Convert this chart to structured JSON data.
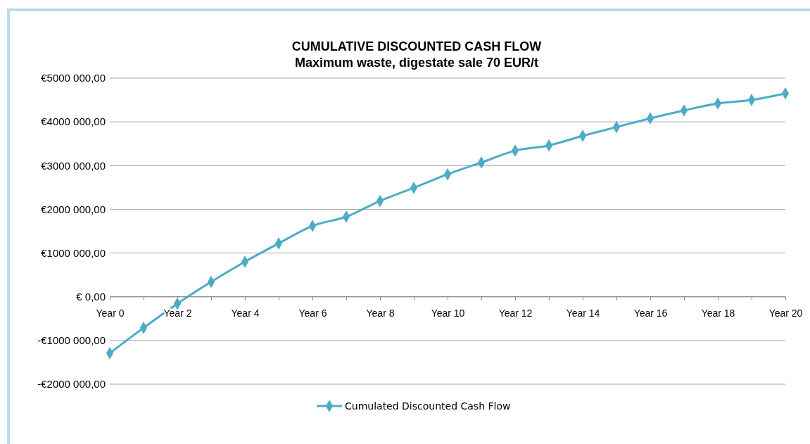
{
  "chart_data": {
    "type": "line",
    "title": "CUMULATIVE DISCOUNTED CASH FLOW",
    "subtitle": "Maximum waste, digestate sale 70 EUR/t",
    "categories": [
      "Year 0",
      null,
      "Year 2",
      null,
      "Year 4",
      null,
      "Year 6",
      null,
      "Year 8",
      null,
      "Year 10",
      null,
      "Year 12",
      null,
      "Year 14",
      null,
      "Year 16",
      null,
      "Year 18",
      null,
      "Year 20"
    ],
    "series": [
      {
        "name": "Cumulated Discounted Cash Flow",
        "color": "#4bacc6",
        "values": [
          -1290000,
          -710000,
          -160000,
          340000,
          800000,
          1220000,
          1620000,
          1830000,
          2190000,
          2490000,
          2800000,
          3070000,
          3340000,
          3460000,
          3680000,
          3880000,
          4080000,
          4260000,
          4420000,
          4500000,
          4650000
        ]
      }
    ],
    "ylim": [
      -2000000,
      5000000
    ],
    "yticks": [
      {
        "value": -2000000,
        "label": "-€2000 000,00"
      },
      {
        "value": -1000000,
        "label": "-€1000 000,00"
      },
      {
        "value": 0,
        "label": "€ 0,00"
      },
      {
        "value": 1000000,
        "label": "€1000 000,00"
      },
      {
        "value": 2000000,
        "label": "€2000 000,00"
      },
      {
        "value": 3000000,
        "label": "€3000 000,00"
      },
      {
        "value": 4000000,
        "label": "€4000 000,00"
      },
      {
        "value": 5000000,
        "label": "€5000 000,00"
      }
    ],
    "grid": "y",
    "legend": "bottom",
    "marker": "diamond",
    "line_style": "solid"
  }
}
